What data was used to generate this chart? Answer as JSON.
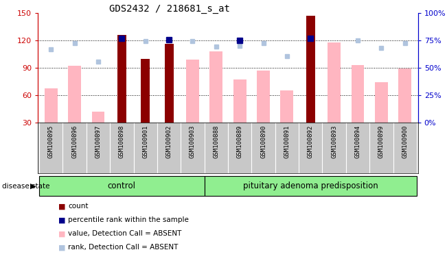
{
  "title": "GDS2432 / 218681_s_at",
  "samples": [
    "GSM100895",
    "GSM100896",
    "GSM100897",
    "GSM100898",
    "GSM100901",
    "GSM100902",
    "GSM100903",
    "GSM100888",
    "GSM100889",
    "GSM100890",
    "GSM100891",
    "GSM100892",
    "GSM100893",
    "GSM100894",
    "GSM100899",
    "GSM100900"
  ],
  "groups": [
    "control",
    "control",
    "control",
    "control",
    "control",
    "control",
    "control",
    "pituitary adenoma predisposition",
    "pituitary adenoma predisposition",
    "pituitary adenoma predisposition",
    "pituitary adenoma predisposition",
    "pituitary adenoma predisposition",
    "pituitary adenoma predisposition",
    "pituitary adenoma predisposition",
    "pituitary adenoma predisposition",
    "pituitary adenoma predisposition"
  ],
  "count": [
    null,
    null,
    null,
    126,
    100,
    116,
    null,
    null,
    null,
    null,
    null,
    147,
    null,
    null,
    null,
    null
  ],
  "percentile_rank": [
    null,
    null,
    null,
    122,
    null,
    121,
    null,
    null,
    120,
    null,
    null,
    122,
    null,
    null,
    null,
    null
  ],
  "value_absent": [
    67,
    92,
    42,
    null,
    null,
    null,
    99,
    108,
    77,
    87,
    65,
    null,
    118,
    93,
    74,
    89
  ],
  "rank_absent": [
    110,
    117,
    97,
    122,
    119,
    null,
    119,
    113,
    114,
    117,
    103,
    null,
    null,
    120,
    112,
    117
  ],
  "ylim_left": [
    30,
    150
  ],
  "ylim_right": [
    0,
    100
  ],
  "yticks_left": [
    30,
    60,
    90,
    120,
    150
  ],
  "yticks_right": [
    0,
    25,
    50,
    75,
    100
  ],
  "ytick_labels_right": [
    "0%",
    "25%",
    "50%",
    "75%",
    "100%"
  ],
  "bar_color_count": "#8B0000",
  "bar_color_value": "#FFB6C1",
  "dot_color_percentile": "#00008B",
  "dot_color_rank": "#B0C4DE",
  "bg_color": "#FFFFFF",
  "label_color_left": "#CC0000",
  "label_color_right": "#0000CC",
  "group_fill": "#90EE90",
  "xtick_bg": "#C8C8C8",
  "n_control": 7,
  "n_pituitary": 9
}
